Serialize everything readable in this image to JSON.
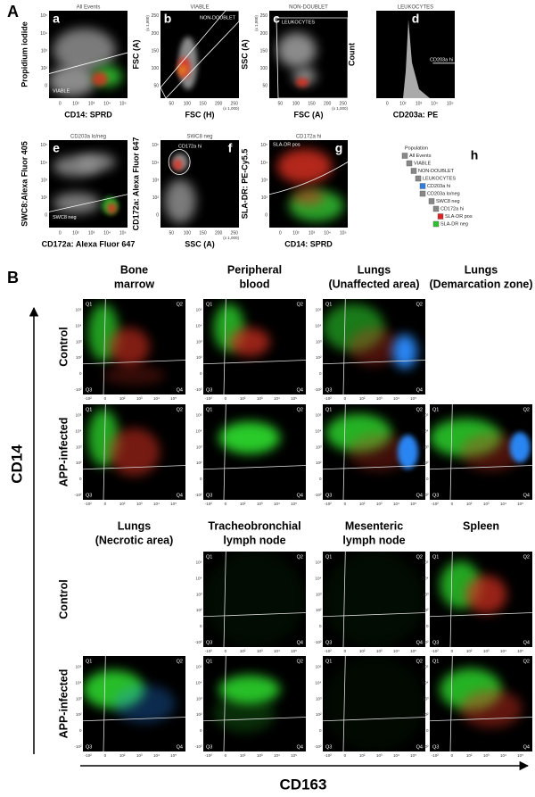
{
  "part_a": {
    "label": "A",
    "scale_unit": "(x 1,000)",
    "linear_ticks": [
      "50",
      "100",
      "150",
      "200",
      "250"
    ],
    "log_ticks": [
      "0",
      "10²",
      "10³",
      "10⁴",
      "10⁵"
    ],
    "panels": [
      {
        "letter": "a",
        "title": "All Events",
        "y_label": "Propidium iodide",
        "x_label": "CD14: SPRD",
        "gate": "VIABLE",
        "x_scale": "log",
        "y_scale": "log"
      },
      {
        "letter": "b",
        "title": "VIABLE",
        "y_label": "FSC (A)",
        "x_label": "FSC (H)",
        "gate": "NON-DOUBLET",
        "x_scale": "linear",
        "y_scale": "linear"
      },
      {
        "letter": "c",
        "title": "NON-DOUBLET",
        "y_label": "SSC (A)",
        "x_label": "FSC (A)",
        "gate": "LEUKOCYTES",
        "x_scale": "linear",
        "y_scale": "linear"
      },
      {
        "letter": "d",
        "title": "LEUKOCYTES",
        "y_label": "Count",
        "x_label": "CD203a: PE",
        "gate": "CD203a hi",
        "x_scale": "log",
        "y_scale": "none"
      },
      {
        "letter": "e",
        "title": "CD203a lo/neg",
        "y_label": "SWC8:Alexa Fluor 405",
        "x_label": "CD172a: Alexa Fluor 647",
        "gate": "SWC8 neg",
        "x_scale": "log",
        "y_scale": "log"
      },
      {
        "letter": "f",
        "title": "SWC8 neg",
        "y_label": "CD172a: Alexa Fluor 647",
        "x_label": "SSC (A)",
        "gate": "CD172a hi",
        "x_scale": "linear",
        "y_scale": "log"
      },
      {
        "letter": "g",
        "title": "CD172a hi",
        "y_label": "SLA-DR: PE-Cy5.5",
        "x_label": "CD14: SPRD",
        "gate": "SLA-DR pos",
        "x_scale": "log",
        "y_scale": "log"
      }
    ],
    "hierarchy": {
      "letter": "h",
      "items": [
        {
          "text": "Population",
          "color": null
        },
        {
          "text": "All Events",
          "color": "#888888"
        },
        {
          "text": "VIABLE",
          "color": "#888888"
        },
        {
          "text": "NON-DOUBLET",
          "color": "#888888"
        },
        {
          "text": "LEUKOCYTES",
          "color": "#888888"
        },
        {
          "text": "CD203a hi",
          "color": "#2f7fe0"
        },
        {
          "text": "CD203a lo/neg",
          "color": "#888888"
        },
        {
          "text": "SWC8 neg",
          "color": "#888888"
        },
        {
          "text": "CD172a hi",
          "color": "#888888"
        },
        {
          "text": "SLA-DR pos",
          "color": "#e02020"
        },
        {
          "text": "SLA-DR neg",
          "color": "#30c030"
        }
      ]
    }
  },
  "part_b": {
    "label": "B",
    "y_axis": "CD14",
    "x_axis": "CD163",
    "quadrants": [
      "Q1",
      "Q2",
      "Q3",
      "Q4"
    ],
    "ticks": [
      "-10²",
      "0",
      "10²",
      "10³",
      "10⁴",
      "10⁵"
    ],
    "rows": [
      "Control",
      "APP-infected"
    ],
    "groups": [
      {
        "columns": [
          [
            "Bone",
            "marrow"
          ],
          [
            "Peripheral",
            "blood"
          ],
          [
            "Lungs",
            "(Unaffected area)"
          ],
          [
            "Lungs",
            "(Demarcation zone)"
          ]
        ]
      },
      {
        "columns": [
          [
            "Lungs",
            "(Necrotic area)"
          ],
          [
            "Tracheobronchial",
            "lymph node"
          ],
          [
            "Mesenteric",
            "lymph node"
          ],
          [
            "Spleen"
          ]
        ]
      }
    ]
  }
}
